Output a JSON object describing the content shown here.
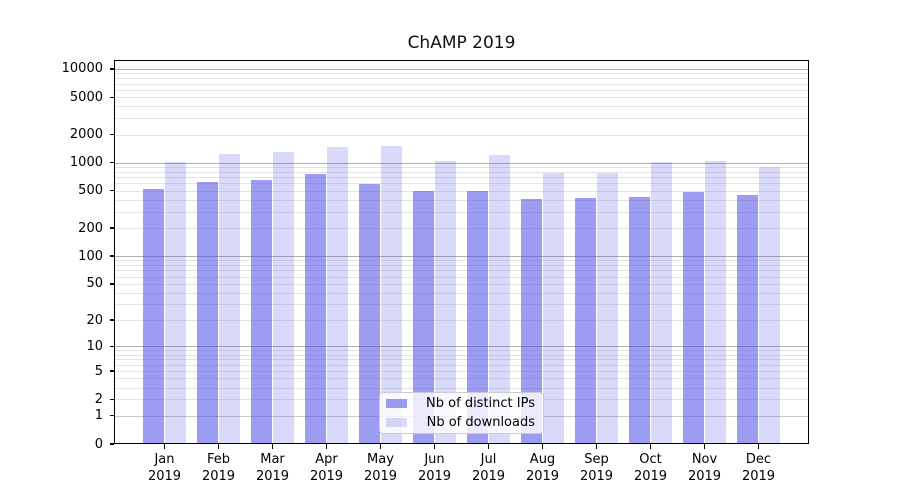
{
  "title": "ChAMP 2019",
  "legend": {
    "items": [
      {
        "label": "Nb of distinct IPs"
      },
      {
        "label": "Nb of downloads"
      }
    ]
  },
  "colors": {
    "distinct_ips_bar": "#a0a0f0",
    "downloads_bar": "#d9d9fa",
    "distinct_ips_rgba": "rgba(85,85,230,0.58)",
    "downloads_rgba": "rgba(85,85,230,0.225)",
    "major_gridline": "#b0b0b0",
    "minor_gridline": "#e4e4e4",
    "one_gridline": "#c9c9c9"
  },
  "chart_data": {
    "type": "bar",
    "title": "ChAMP 2019",
    "categories": [
      "Jan",
      "Feb",
      "Mar",
      "Apr",
      "May",
      "Jun",
      "Jul",
      "Aug",
      "Sep",
      "Oct",
      "Nov",
      "Dec"
    ],
    "year": "2019",
    "series": [
      {
        "name": "Nb of distinct IPs",
        "color": "#a0a0f0",
        "values": [
          530,
          630,
          660,
          755,
          595,
          500,
          505,
          410,
          420,
          430,
          490,
          455
        ]
      },
      {
        "name": "Nb of downloads",
        "color": "#d9d9fa",
        "values": [
          1025,
          1225,
          1290,
          1460,
          1520,
          1035,
          1200,
          785,
          775,
          1030,
          1050,
          895
        ]
      }
    ],
    "xlabel": "",
    "ylabel": "",
    "yscale": "log1p",
    "ylim": [
      0,
      12600
    ],
    "yticks": [
      10000,
      5000,
      2000,
      1000,
      500,
      200,
      100,
      50,
      20,
      10,
      5,
      2,
      1,
      0
    ],
    "grid": "horizontal, major and minor",
    "legend_position": "inside bottom-center"
  }
}
